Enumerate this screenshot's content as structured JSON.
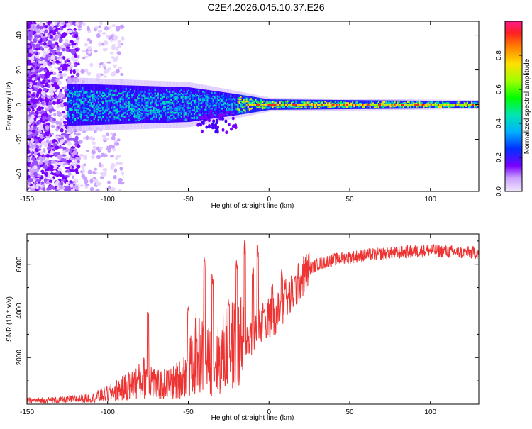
{
  "title": "C2E4.2026.045.10.37.E26",
  "chart_data": [
    {
      "type": "heatmap",
      "id": "spectrogram",
      "xlabel": "Height of straight line (km)",
      "ylabel": "Frequency (Hz)",
      "xlim": [
        -150,
        130
      ],
      "ylim": [
        -50,
        48
      ],
      "xticks": [
        -150,
        -100,
        -50,
        0,
        50,
        100
      ],
      "yticks": [
        -40,
        -20,
        0,
        20,
        40
      ],
      "colorbar": {
        "label": "Normalized spectral amplitude",
        "range": [
          0,
          1
        ],
        "ticks": [
          0.0,
          0.2,
          0.4,
          0.6,
          0.8
        ]
      },
      "description_points": {
        "noise_region_x": [
          -150,
          -90
        ],
        "signal_center_hz": 0,
        "band_halfwidth_hz": [
          [
            -120,
            12
          ],
          [
            -50,
            10
          ],
          [
            -20,
            6
          ],
          [
            0,
            3
          ],
          [
            130,
            2
          ]
        ]
      }
    },
    {
      "type": "line",
      "id": "snr",
      "xlabel": "Height of straight line (km)",
      "ylabel": "SNR (10 * v/v)",
      "xlim": [
        -150,
        130
      ],
      "ylim": [
        0,
        7300
      ],
      "xticks": [
        -150,
        -100,
        -50,
        0,
        50,
        100
      ],
      "yticks": [
        2000,
        4000,
        6000
      ],
      "series": [
        {
          "name": "SNR",
          "color": "#ee3333",
          "x": [
            -150,
            -130,
            -110,
            -100,
            -90,
            -80,
            -75,
            -70,
            -60,
            -55,
            -50,
            -45,
            -40,
            -35,
            -30,
            -25,
            -20,
            -15,
            -10,
            -5,
            0,
            5,
            10,
            15,
            20,
            25,
            30,
            40,
            50,
            60,
            70,
            80,
            90,
            100,
            110,
            120,
            130
          ],
          "y": [
            150,
            180,
            260,
            450,
            700,
            1000,
            1300,
            800,
            900,
            1100,
            1400,
            2200,
            2000,
            1700,
            2000,
            2600,
            2400,
            2700,
            3000,
            3400,
            3700,
            3900,
            4300,
            4800,
            5400,
            5800,
            6000,
            6200,
            6300,
            6400,
            6450,
            6500,
            6550,
            6600,
            6550,
            6500,
            6500
          ],
          "spikes": [
            [
              -75,
              4100
            ],
            [
              -50,
              4200
            ],
            [
              -40,
              6400
            ],
            [
              -35,
              5700
            ],
            [
              -25,
              4500
            ],
            [
              -20,
              6300
            ],
            [
              -15,
              7100
            ],
            [
              -10,
              6000
            ],
            [
              -7,
              6850
            ],
            [
              -3,
              4300
            ],
            [
              2,
              5200
            ],
            [
              8,
              5800
            ],
            [
              10,
              5400
            ]
          ]
        }
      ]
    }
  ]
}
